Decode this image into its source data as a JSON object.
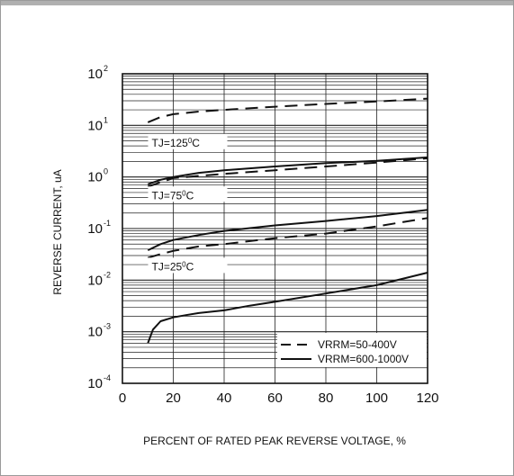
{
  "chart_data": {
    "type": "line",
    "xlabel": "PERCENT OF RATED PEAK REVERSE VOLTAGE, %",
    "ylabel": "REVERSE CURRENT, uA",
    "xlim": [
      0,
      120
    ],
    "ylim": [
      0.0001,
      100
    ],
    "yscale": "log",
    "grid": true,
    "x_ticks": [
      0,
      20,
      40,
      60,
      80,
      100,
      120
    ],
    "y_ticks": [
      {
        "value": 100,
        "base": "10",
        "exp": "2"
      },
      {
        "value": 10,
        "base": "10",
        "exp": "1"
      },
      {
        "value": 1,
        "base": "10",
        "exp": "0"
      },
      {
        "value": 0.1,
        "base": "10",
        "exp": "-1"
      },
      {
        "value": 0.01,
        "base": "10",
        "exp": "-2"
      },
      {
        "value": 0.001,
        "base": "10",
        "exp": "-3"
      },
      {
        "value": 0.0001,
        "base": "10",
        "exp": "-4"
      }
    ],
    "annotations": [
      {
        "prefix": "TJ=125",
        "deg": "0",
        "suffix": "C",
        "x": 11.5,
        "y": 4.4
      },
      {
        "prefix": "TJ=75",
        "deg": "0",
        "suffix": "C",
        "x": 11.5,
        "y": 0.42
      },
      {
        "prefix": "TJ=25",
        "deg": "0",
        "suffix": "C",
        "x": 11.5,
        "y": 0.0175
      }
    ],
    "legend": {
      "placement": "bottom-right",
      "entries": [
        {
          "label": "VRRM=50-400V",
          "style": "dashed"
        },
        {
          "label": "VRRM=600-1000V",
          "style": "solid"
        }
      ]
    },
    "series": [
      {
        "style": "dashed",
        "x": [
          10,
          15,
          20,
          30,
          40,
          60,
          80,
          100,
          120
        ],
        "y": [
          11.5,
          14.5,
          16.5,
          18.5,
          20,
          23,
          26,
          29,
          33
        ]
      },
      {
        "style": "dashed",
        "x": [
          10,
          20,
          30,
          40,
          60,
          80,
          100,
          120
        ],
        "y": [
          0.65,
          0.95,
          1.05,
          1.15,
          1.35,
          1.6,
          1.9,
          2.3
        ]
      },
      {
        "style": "solid",
        "x": [
          10,
          15,
          20,
          30,
          40,
          60,
          80,
          100,
          120
        ],
        "y": [
          0.72,
          0.88,
          1.0,
          1.2,
          1.35,
          1.6,
          1.85,
          2.05,
          2.4
        ]
      },
      {
        "style": "dashed",
        "x": [
          10,
          15,
          20,
          30,
          40,
          60,
          80,
          100,
          120
        ],
        "y": [
          0.027,
          0.032,
          0.037,
          0.045,
          0.05,
          0.065,
          0.08,
          0.11,
          0.16
        ]
      },
      {
        "style": "solid",
        "x": [
          10,
          15,
          20,
          30,
          40,
          60,
          80,
          100,
          120
        ],
        "y": [
          0.038,
          0.05,
          0.06,
          0.075,
          0.09,
          0.115,
          0.14,
          0.175,
          0.23
        ]
      },
      {
        "style": "solid",
        "x": [
          10,
          12,
          15,
          20,
          25,
          30,
          40,
          50,
          60,
          80,
          100,
          120
        ],
        "y": [
          0.0006,
          0.0011,
          0.0016,
          0.0019,
          0.0021,
          0.0023,
          0.0026,
          0.0032,
          0.0038,
          0.0055,
          0.008,
          0.014
        ]
      }
    ]
  }
}
